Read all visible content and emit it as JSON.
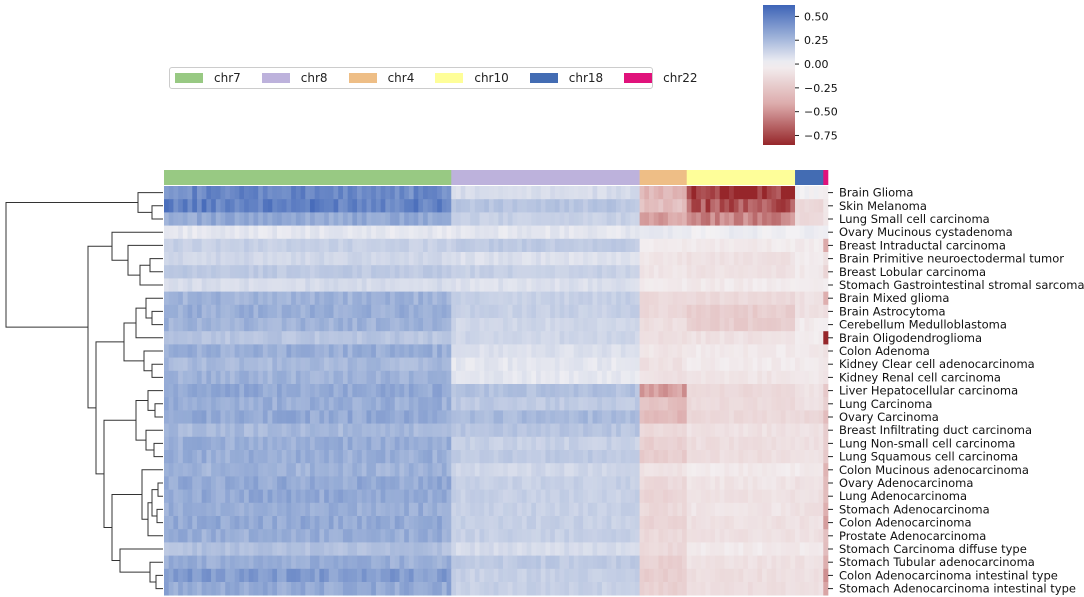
{
  "chart_data": {
    "type": "heatmap",
    "title": "",
    "xlabel": "",
    "ylabel": "",
    "legend": {
      "placement": "top-left",
      "entries": [
        {
          "name": "chr7",
          "color": "#98c983"
        },
        {
          "name": "chr8",
          "color": "#bdb2dc"
        },
        {
          "name": "chr4",
          "color": "#eebe86"
        },
        {
          "name": "chr10",
          "color": "#fefe99"
        },
        {
          "name": "chr18",
          "color": "#436cb3"
        },
        {
          "name": "chr22",
          "color": "#e0127b"
        }
      ]
    },
    "column_groups": [
      {
        "name": "chr7",
        "columns": 61
      },
      {
        "name": "chr8",
        "columns": 40
      },
      {
        "name": "chr4",
        "columns": 10
      },
      {
        "name": "chr10",
        "columns": 23
      },
      {
        "name": "chr18",
        "columns": 6
      },
      {
        "name": "chr22",
        "columns": 1
      }
    ],
    "colorbar": {
      "colormap": "vlag",
      "range": [
        -0.85,
        0.62
      ],
      "ticks": [
        "0.50",
        "0.25",
        "0.00",
        "−0.25",
        "−0.50",
        "−0.75"
      ],
      "tick_values": [
        0.5,
        0.25,
        0.0,
        -0.25,
        -0.5,
        -0.75
      ]
    },
    "rows": [
      {
        "label": "Brain Glioma",
        "values": [
          0.46,
          0.1,
          -0.35,
          -0.78,
          0.0,
          -0.02
        ]
      },
      {
        "label": "Skin Melanoma",
        "values": [
          0.5,
          0.2,
          -0.3,
          -0.7,
          -0.15,
          -0.05
        ]
      },
      {
        "label": "Lung Small cell carcinoma",
        "values": [
          0.32,
          0.15,
          -0.45,
          -0.55,
          -0.15,
          -0.05
        ]
      },
      {
        "label": "Ovary Mucinous cystadenoma",
        "values": [
          0.05,
          0.05,
          0.03,
          0.02,
          0.02,
          0.02
        ]
      },
      {
        "label": "Breast Intraductal carcinoma",
        "values": [
          0.15,
          0.18,
          -0.05,
          -0.05,
          -0.05,
          -0.45
        ]
      },
      {
        "label": "Brain Primitive neuroectodermal tumor",
        "values": [
          0.12,
          0.08,
          -0.08,
          -0.1,
          -0.05,
          -0.08
        ]
      },
      {
        "label": "Breast Lobular carcinoma",
        "values": [
          0.18,
          0.15,
          -0.08,
          -0.1,
          -0.05,
          -0.15
        ]
      },
      {
        "label": "Stomach Gastrointestinal stromal sarcoma",
        "values": [
          0.1,
          0.08,
          -0.05,
          -0.05,
          -0.05,
          -0.05
        ]
      },
      {
        "label": "Brain Mixed glioma",
        "values": [
          0.28,
          0.15,
          -0.15,
          -0.15,
          -0.1,
          -0.4
        ]
      },
      {
        "label": "Brain Astrocytoma",
        "values": [
          0.3,
          0.15,
          -0.15,
          -0.22,
          -0.1,
          -0.1
        ]
      },
      {
        "label": "Cerebellum Medulloblastoma",
        "values": [
          0.28,
          0.12,
          -0.12,
          -0.22,
          -0.05,
          -0.05
        ]
      },
      {
        "label": "Brain Oligodendroglioma",
        "values": [
          0.2,
          0.12,
          -0.12,
          -0.1,
          -0.05,
          -0.85
        ]
      },
      {
        "label": "Colon Adenoma",
        "values": [
          0.3,
          0.08,
          -0.08,
          -0.05,
          -0.05,
          -0.1
        ]
      },
      {
        "label": "Kidney Clear cell adenocarcinoma",
        "values": [
          0.25,
          0.05,
          -0.1,
          -0.05,
          -0.05,
          -0.1
        ]
      },
      {
        "label": "Kidney Renal cell carcinoma",
        "values": [
          0.28,
          0.05,
          -0.1,
          -0.08,
          -0.05,
          -0.1
        ]
      },
      {
        "label": "Liver Hepatocellular carcinoma",
        "values": [
          0.32,
          0.22,
          -0.45,
          -0.15,
          -0.1,
          -0.25
        ]
      },
      {
        "label": "Lung Carcinoma",
        "values": [
          0.3,
          0.18,
          -0.3,
          -0.15,
          -0.1,
          -0.2
        ]
      },
      {
        "label": "Ovary Carcinoma",
        "values": [
          0.32,
          0.25,
          -0.35,
          -0.15,
          -0.15,
          -0.3
        ]
      },
      {
        "label": "Breast Infiltrating duct carcinoma",
        "values": [
          0.25,
          0.2,
          -0.15,
          -0.1,
          -0.1,
          -0.25
        ]
      },
      {
        "label": "Lung Non-small cell carcinoma",
        "values": [
          0.3,
          0.15,
          -0.2,
          -0.12,
          -0.1,
          -0.25
        ]
      },
      {
        "label": "Lung Squamous cell carcinoma",
        "values": [
          0.3,
          0.18,
          -0.22,
          -0.12,
          -0.1,
          -0.3
        ]
      },
      {
        "label": "Colon Mucinous adenocarcinoma",
        "values": [
          0.28,
          0.12,
          -0.1,
          -0.05,
          -0.05,
          -0.4
        ]
      },
      {
        "label": "Ovary Adenocarcinoma",
        "values": [
          0.32,
          0.15,
          -0.15,
          -0.08,
          -0.1,
          -0.35
        ]
      },
      {
        "label": "Lung Adenocarcinoma",
        "values": [
          0.32,
          0.15,
          -0.18,
          -0.1,
          -0.1,
          -0.35
        ]
      },
      {
        "label": "Stomach Adenocarcinoma",
        "values": [
          0.3,
          0.15,
          -0.15,
          -0.08,
          -0.1,
          -0.4
        ]
      },
      {
        "label": "Colon Adenocarcinoma",
        "values": [
          0.32,
          0.15,
          -0.18,
          -0.1,
          -0.1,
          -0.45
        ]
      },
      {
        "label": "Prostate Adenocarcinoma",
        "values": [
          0.3,
          0.15,
          -0.15,
          -0.1,
          -0.1,
          -0.35
        ]
      },
      {
        "label": "Stomach Carcinoma diffuse type",
        "values": [
          0.22,
          0.1,
          -0.15,
          -0.05,
          -0.05,
          -0.3
        ]
      },
      {
        "label": "Stomach Tubular adenocarcinoma",
        "values": [
          0.3,
          0.18,
          -0.2,
          -0.1,
          -0.1,
          -0.45
        ]
      },
      {
        "label": "Colon Adenocarcinoma intestinal type",
        "values": [
          0.38,
          0.15,
          -0.22,
          -0.12,
          -0.1,
          -0.45
        ]
      },
      {
        "label": "Stomach Adenocarcinoma intestinal type",
        "values": [
          0.32,
          0.15,
          -0.2,
          -0.12,
          -0.1,
          -0.45
        ]
      }
    ]
  }
}
